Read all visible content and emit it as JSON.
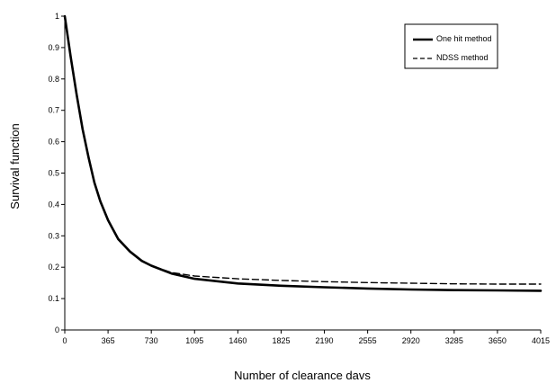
{
  "chart_data": {
    "type": "line",
    "title": "",
    "xlabel": "Number of clearance davs",
    "ylabel": "Survival function",
    "xlim": [
      0,
      4015
    ],
    "ylim": [
      0,
      1
    ],
    "grid": false,
    "legend_position": "top-right",
    "x_ticks": [
      "0",
      "365",
      "730",
      "1095",
      "1460",
      "1825",
      "2190",
      "2555",
      "2920",
      "3285",
      "3650",
      "4015"
    ],
    "y_ticks": [
      "0",
      "0.1",
      "0.2",
      "0.3",
      "0.4",
      "0.5",
      "0.6",
      "0.7",
      "0.8",
      "0.9",
      "1"
    ],
    "x": [
      0,
      50,
      100,
      150,
      200,
      250,
      300,
      365,
      450,
      550,
      650,
      730,
      900,
      1095,
      1460,
      1825,
      2190,
      2555,
      2920,
      3285,
      3650,
      4015
    ],
    "series": [
      {
        "name": "One hit method",
        "style": "solid",
        "color": "#000000",
        "values": [
          1.0,
          0.87,
          0.75,
          0.64,
          0.55,
          0.47,
          0.41,
          0.35,
          0.29,
          0.25,
          0.22,
          0.205,
          0.18,
          0.163,
          0.148,
          0.141,
          0.136,
          0.132,
          0.129,
          0.127,
          0.126,
          0.125
        ]
      },
      {
        "name": "NDSS method",
        "style": "dashed",
        "color": "#000000",
        "values": [
          1.0,
          0.87,
          0.75,
          0.64,
          0.55,
          0.47,
          0.41,
          0.35,
          0.29,
          0.25,
          0.22,
          0.205,
          0.183,
          0.172,
          0.163,
          0.158,
          0.154,
          0.151,
          0.149,
          0.147,
          0.146,
          0.146
        ]
      }
    ]
  }
}
